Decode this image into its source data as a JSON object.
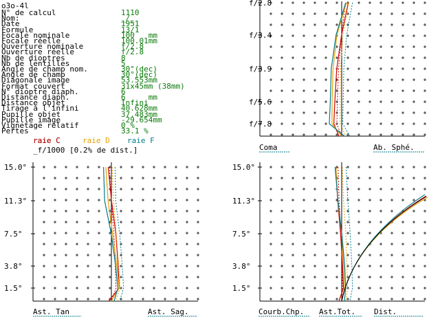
{
  "window": {
    "title": "o3o-4l"
  },
  "params": [
    {
      "label": "N° de calcul",
      "value": "1110"
    },
    {
      "label": "Nom:",
      "value": "_/_"
    },
    {
      "label": "Date",
      "value": "1951"
    },
    {
      "label": "Formule",
      "value": "13/1"
    },
    {
      "label": "Focale nominale",
      "value": "100   mm"
    },
    {
      "label": "Focale réelle",
      "value": "100.01mm"
    },
    {
      "label": "Ouverture nominale",
      "value": "f/2.8"
    },
    {
      "label": "Ouverture réelle",
      "value": "f/2.8"
    },
    {
      "label": "Nb de dioptres",
      "value": "8"
    },
    {
      "label": "Nb de lentilles",
      "value": "5"
    },
    {
      "label": "Angle de champ nom.",
      "value": "30°(dec)"
    },
    {
      "label": "Angle de champ",
      "value": "30°(dec)"
    },
    {
      "label": "Diagonale image",
      "value": "53.553mm"
    },
    {
      "label": "Format couvert",
      "value": "31x45mm (38mm)"
    },
    {
      "label": "N° dioptre diaph.",
      "value": "6"
    },
    {
      "label": "Distance diaph.",
      "value": "6     mm"
    },
    {
      "label": "Distance objet",
      "value": "Infini"
    },
    {
      "label": "Tirage à l'infini",
      "value": "40.628mm"
    },
    {
      "label": "Pupille objet",
      "value": "37.483mm"
    },
    {
      "label": "Pupille image",
      "value": "-29.654mm"
    },
    {
      "label": "Vignetage relatif",
      "value": "0 %"
    },
    {
      "label": "Pertes",
      "value": "33.1 %"
    }
  ],
  "legend": {
    "c": "raie C",
    "d": "raie D",
    "f": "raie F",
    "scale": "_f/1000 [0.2% de dist.]",
    "colors": {
      "c": "#cc0000",
      "d": "#e8a000",
      "f": "#007a8a"
    }
  },
  "chart_data": [
    {
      "type": "line",
      "panel": "aperture",
      "y_ticks": [
        "f/2.8",
        "f/3.4",
        "f/3.9",
        "f/5.6",
        "f/7.8"
      ],
      "series": [
        {
          "name": "raie C",
          "values": [
            0.9,
            0.2,
            -0.3,
            -0.5,
            -0.6
          ]
        },
        {
          "name": "raie D",
          "values": [
            0.5,
            -0.5,
            -0.9,
            -1.0,
            -1.0
          ]
        },
        {
          "name": "raie F",
          "values": [
            0.2,
            -0.8,
            -1.3,
            -1.4,
            -1.5
          ]
        }
      ]
    },
    {
      "type": "line",
      "panel": "astigmatism",
      "y_ticks": [
        "15.0°",
        "11.3°",
        "7.5°",
        "3.8°",
        "1.5°"
      ],
      "series": [
        {
          "name": "raie C",
          "values": [
            -0.1,
            0.2,
            0.6,
            0.8,
            0.9
          ]
        },
        {
          "name": "raie D",
          "values": [
            -0.5,
            -0.3,
            0.1,
            0.5,
            0.7
          ]
        },
        {
          "name": "raie F",
          "values": [
            -0.9,
            -0.8,
            -0.2,
            0.2,
            0.4
          ]
        }
      ]
    },
    {
      "type": "line",
      "panel": "field",
      "y_ticks": [
        "15.0°",
        "11.3°",
        "7.5°",
        "3.8°",
        "1.5°"
      ],
      "series": [
        {
          "name": "raie C",
          "values": [
            -0.4,
            -0.2,
            0.1,
            0.3,
            0.4
          ]
        },
        {
          "name": "raie D",
          "values": [
            -0.6,
            -0.4,
            0.0,
            0.2,
            0.3
          ]
        },
        {
          "name": "raie F",
          "values": [
            -0.9,
            -0.6,
            -0.2,
            0.1,
            0.2
          ]
        }
      ]
    }
  ],
  "tabs": {
    "coma": "Coma",
    "ab_sphe": "Ab. Sphé.",
    "ast_tan": "Ast. Tan",
    "ast_sag": "Ast. Sag.",
    "courb": "Courb.Chp.",
    "ast_tot": "Ast.Tot.",
    "dist": "Dist."
  }
}
